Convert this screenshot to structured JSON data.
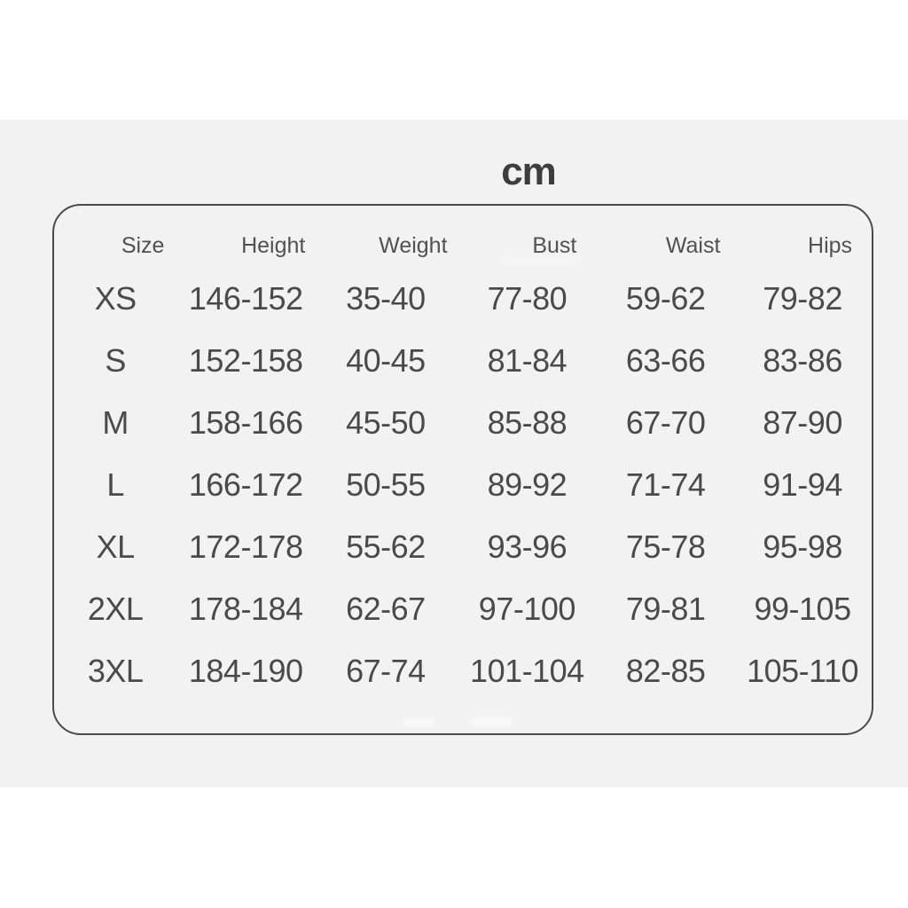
{
  "unit_label": "cm",
  "colors": {
    "page_background": "#ffffff",
    "panel_background": "#f1f2f1",
    "card_border": "#4b4b4b",
    "header_text": "#515151",
    "value_text": "#4a4a4a",
    "title_text": "#3d3d3d"
  },
  "table": {
    "headers": [
      "Size",
      "Height",
      "Weight",
      "Bust",
      "Waist",
      "Hips"
    ],
    "rows": [
      {
        "size": "XS",
        "height": "146-152",
        "weight": "35-40",
        "bust": "77-80",
        "waist": "59-62",
        "hips": "79-82"
      },
      {
        "size": "S",
        "height": "152-158",
        "weight": "40-45",
        "bust": "81-84",
        "waist": "63-66",
        "hips": "83-86"
      },
      {
        "size": "M",
        "height": "158-166",
        "weight": "45-50",
        "bust": "85-88",
        "waist": "67-70",
        "hips": "87-90"
      },
      {
        "size": "L",
        "height": "166-172",
        "weight": "50-55",
        "bust": "89-92",
        "waist": "71-74",
        "hips": "91-94"
      },
      {
        "size": "XL",
        "height": "172-178",
        "weight": "55-62",
        "bust": "93-96",
        "waist": "75-78",
        "hips": "95-98"
      },
      {
        "size": "2XL",
        "height": "178-184",
        "weight": "62-67",
        "bust": "97-100",
        "waist": "79-81",
        "hips": "99-105"
      },
      {
        "size": "3XL",
        "height": "184-190",
        "weight": "67-74",
        "bust": "101-104",
        "waist": "82-85",
        "hips": "105-110"
      }
    ]
  },
  "chart_data": {
    "type": "table",
    "title": "cm",
    "columns": [
      "Size",
      "Height",
      "Weight",
      "Bust",
      "Waist",
      "Hips"
    ],
    "rows": [
      [
        "XS",
        "146-152",
        "35-40",
        "77-80",
        "59-62",
        "79-82"
      ],
      [
        "S",
        "152-158",
        "40-45",
        "81-84",
        "63-66",
        "83-86"
      ],
      [
        "M",
        "158-166",
        "45-50",
        "85-88",
        "67-70",
        "87-90"
      ],
      [
        "L",
        "166-172",
        "50-55",
        "89-92",
        "71-74",
        "91-94"
      ],
      [
        "XL",
        "172-178",
        "55-62",
        "93-96",
        "75-78",
        "95-98"
      ],
      [
        "2XL",
        "178-184",
        "62-67",
        "97-100",
        "79-81",
        "99-105"
      ],
      [
        "3XL",
        "184-190",
        "67-74",
        "101-104",
        "82-85",
        "105-110"
      ]
    ]
  }
}
